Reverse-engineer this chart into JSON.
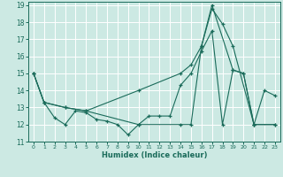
{
  "title": "",
  "xlabel": "Humidex (Indice chaleur)",
  "bg_color": "#cce9e3",
  "line_color": "#1a6b5a",
  "grid_color": "#ffffff",
  "xlim": [
    -0.5,
    23.5
  ],
  "ylim": [
    11,
    19.2
  ],
  "xticks": [
    0,
    1,
    2,
    3,
    4,
    5,
    6,
    7,
    8,
    9,
    10,
    11,
    12,
    13,
    14,
    15,
    16,
    17,
    18,
    19,
    20,
    21,
    22,
    23
  ],
  "yticks": [
    11,
    12,
    13,
    14,
    15,
    16,
    17,
    18,
    19
  ],
  "line1_x": [
    0,
    1,
    2,
    3,
    4,
    5,
    6,
    7,
    8,
    9,
    10,
    11,
    12,
    13,
    14,
    15,
    16,
    17,
    18,
    19,
    20,
    21,
    22,
    23
  ],
  "line1_y": [
    15.0,
    13.3,
    12.4,
    12.0,
    12.8,
    12.7,
    12.3,
    12.2,
    12.0,
    11.4,
    12.0,
    12.5,
    12.5,
    12.5,
    14.3,
    15.0,
    16.3,
    17.5,
    12.0,
    15.2,
    15.0,
    12.0,
    14.0,
    13.7
  ],
  "line2_x": [
    0,
    1,
    3,
    5,
    10,
    14,
    15,
    16,
    17,
    19,
    20,
    21,
    23
  ],
  "line2_y": [
    15.0,
    13.3,
    13.0,
    12.8,
    14.0,
    15.0,
    15.5,
    16.6,
    19.0,
    15.2,
    15.0,
    12.0,
    12.0
  ],
  "line3_x": [
    0,
    1,
    3,
    5,
    10,
    14,
    15,
    16,
    17,
    18,
    19,
    21,
    23
  ],
  "line3_y": [
    15.0,
    13.3,
    13.0,
    12.8,
    12.0,
    12.0,
    12.0,
    16.6,
    18.8,
    17.9,
    16.6,
    12.0,
    12.0
  ]
}
